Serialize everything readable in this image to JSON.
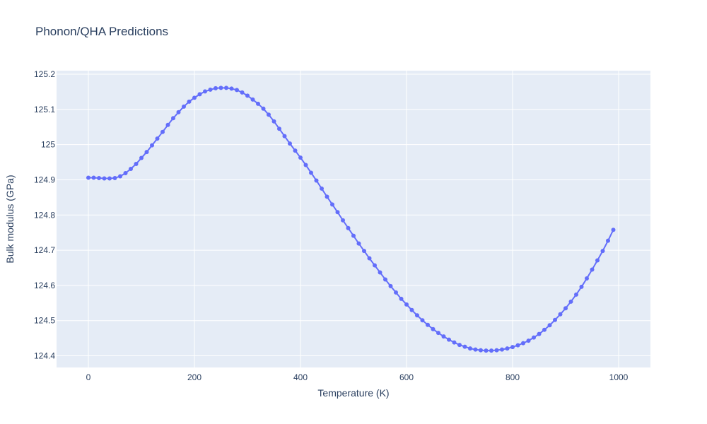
{
  "chart_data": {
    "type": "line",
    "title": "Phonon/QHA Predictions",
    "xlabel": "Temperature (K)",
    "ylabel": "Bulk modulus (GPa)",
    "xlim": [
      -60,
      1060
    ],
    "ylim": [
      124.367,
      125.21
    ],
    "x_ticks": [
      0,
      200,
      400,
      600,
      800,
      1000
    ],
    "x_tick_labels": [
      "0",
      "200",
      "400",
      "600",
      "800",
      "1000"
    ],
    "y_ticks": [
      124.4,
      124.5,
      124.6,
      124.7,
      124.8,
      124.9,
      125,
      125.1,
      125.2
    ],
    "y_tick_labels": [
      "124.4",
      "124.5",
      "124.6",
      "124.7",
      "124.8",
      "124.9",
      "125",
      "125.1",
      "125.2"
    ],
    "grid": true,
    "colors": {
      "plot_bg": "#e5ecf6",
      "grid": "#ffffff",
      "series": "#636efa",
      "text": "#2a3f5f"
    },
    "series": [
      {
        "mode": "lines+markers",
        "x": [
          0,
          10,
          20,
          30,
          40,
          50,
          60,
          70,
          80,
          90,
          100,
          110,
          120,
          130,
          140,
          150,
          160,
          170,
          180,
          190,
          200,
          210,
          220,
          230,
          240,
          250,
          260,
          270,
          280,
          290,
          300,
          310,
          320,
          330,
          340,
          350,
          360,
          370,
          380,
          390,
          400,
          410,
          420,
          430,
          440,
          450,
          460,
          470,
          480,
          490,
          500,
          510,
          520,
          530,
          540,
          550,
          560,
          570,
          580,
          590,
          600,
          610,
          620,
          630,
          640,
          650,
          660,
          670,
          680,
          690,
          700,
          710,
          720,
          730,
          740,
          750,
          760,
          770,
          780,
          790,
          800,
          810,
          820,
          830,
          840,
          850,
          860,
          870,
          880,
          890,
          900,
          910,
          920,
          930,
          940,
          950,
          960,
          970,
          980,
          990
        ],
        "y": [
          124.906,
          124.906,
          124.905,
          124.904,
          124.904,
          124.905,
          124.91,
          124.919,
          124.931,
          124.945,
          124.962,
          124.979,
          124.998,
          125.017,
          125.036,
          125.056,
          125.075,
          125.092,
          125.108,
          125.122,
          125.133,
          125.143,
          125.151,
          125.156,
          125.16,
          125.161,
          125.161,
          125.159,
          125.155,
          125.148,
          125.139,
          125.128,
          125.116,
          125.102,
          125.085,
          125.066,
          125.045,
          125.024,
          125.003,
          124.983,
          124.963,
          124.942,
          124.92,
          124.898,
          124.875,
          124.852,
          124.83,
          124.808,
          124.785,
          124.763,
          124.741,
          124.719,
          124.698,
          124.677,
          124.657,
          124.637,
          124.617,
          124.598,
          124.58,
          124.562,
          124.546,
          124.53,
          124.515,
          124.501,
          124.488,
          124.476,
          124.465,
          124.455,
          124.446,
          124.438,
          124.431,
          124.426,
          124.421,
          124.418,
          124.416,
          124.415,
          124.415,
          124.416,
          124.418,
          124.421,
          124.425,
          124.43,
          124.436,
          124.443,
          124.452,
          124.462,
          124.474,
          124.487,
          124.502,
          124.518,
          124.535,
          124.554,
          124.574,
          124.596,
          124.62,
          124.645,
          124.671,
          124.698,
          124.727,
          124.758
        ]
      }
    ]
  }
}
